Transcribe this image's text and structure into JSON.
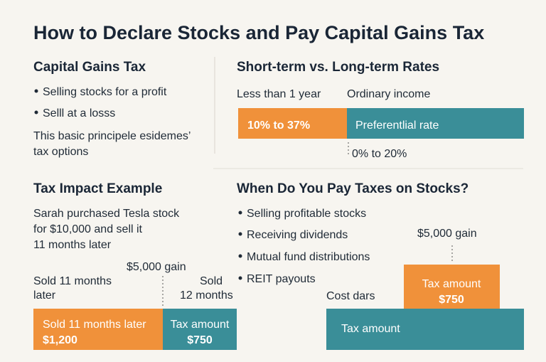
{
  "title": "How to Declare Stocks and Pay Capital Gains Tax",
  "capital_gains": {
    "heading": "Capital Gains Tax",
    "bullets": [
      "Selling stocks for a profit",
      "Selll at a losss"
    ],
    "note": [
      "This basic principele esidemes’",
      "tax options"
    ]
  },
  "rates": {
    "heading": "Short-term vs. Long-term Rates",
    "short_label": "Less than 1 year",
    "long_label": "Ordinary income",
    "short_rate": "10% to 37%",
    "long_rate_label": "Preferentlial rate",
    "long_rate": "0% to 20%"
  },
  "example": {
    "heading": "Tax Impact Example",
    "story": [
      "Sarah purchased Tesla stock",
      "for $10,000 and sell it",
      "11 months later"
    ],
    "gain": "$5,000 gain",
    "left_label": [
      "Sold 11 months",
      "later"
    ],
    "right_label": [
      "Sold",
      "12 months"
    ],
    "bar": {
      "left_text": "Sold 11 months later",
      "left_amount": "$1,200",
      "right_text": "Tax amount",
      "right_amount": "$750"
    }
  },
  "when": {
    "heading": "When Do You Pay Taxes on Stocks?",
    "bullets": [
      "Selling profitable stocks",
      "Receiving dividends",
      "Mutual fund distributions",
      "REIT payouts"
    ],
    "gain": "$5,000 gain",
    "tax_box": {
      "label": "Tax amount",
      "amount": "$750"
    },
    "cost_label": "Cost dars",
    "base_label": "Tax amount"
  }
}
